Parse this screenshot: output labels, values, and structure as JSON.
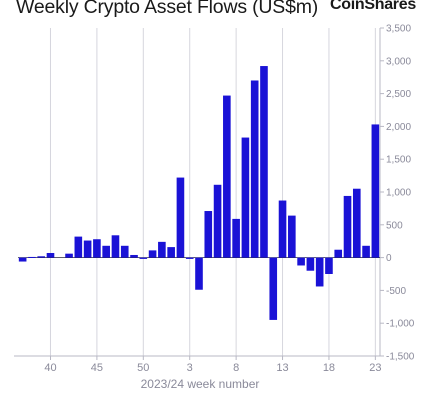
{
  "header": {
    "title": "Weekly Crypto Asset Flows (US$m)",
    "logo_text": "CoinShares"
  },
  "chart_data": {
    "type": "bar",
    "title": "Weekly Crypto Asset Flows (US$m)",
    "xlabel": "2023/24 week number",
    "ylabel": "",
    "ylim": [
      -1500,
      3500
    ],
    "yticks": [
      -1500,
      -1000,
      -500,
      0,
      500,
      1000,
      1500,
      2000,
      2500,
      3000,
      3500
    ],
    "ytick_labels": [
      "-1,500",
      "-1,000",
      "-500",
      "0",
      "500",
      "1,000",
      "1,500",
      "2,000",
      "2,500",
      "3,000",
      "3,500"
    ],
    "xtick_labels": [
      "40",
      "45",
      "50",
      "3",
      "8",
      "13",
      "18",
      "23"
    ],
    "grid": "vertical",
    "bar_color": "#1a12d6",
    "categories": [
      "37",
      "38",
      "39",
      "40",
      "41",
      "42",
      "43",
      "44",
      "45",
      "46",
      "47",
      "48",
      "49",
      "50",
      "51",
      "52",
      "1",
      "2",
      "3",
      "4",
      "5",
      "6",
      "7",
      "8",
      "9",
      "10",
      "11",
      "12",
      "13",
      "14",
      "15",
      "16",
      "17",
      "18",
      "19",
      "20",
      "21",
      "22",
      "23"
    ],
    "values": [
      -60,
      10,
      20,
      70,
      0,
      60,
      320,
      260,
      280,
      180,
      340,
      180,
      40,
      -20,
      110,
      240,
      160,
      1220,
      -20,
      -490,
      710,
      1110,
      2470,
      590,
      1830,
      2700,
      2920,
      -950,
      870,
      640,
      -120,
      -200,
      -440,
      -250,
      120,
      940,
      1050,
      180,
      2030
    ]
  }
}
